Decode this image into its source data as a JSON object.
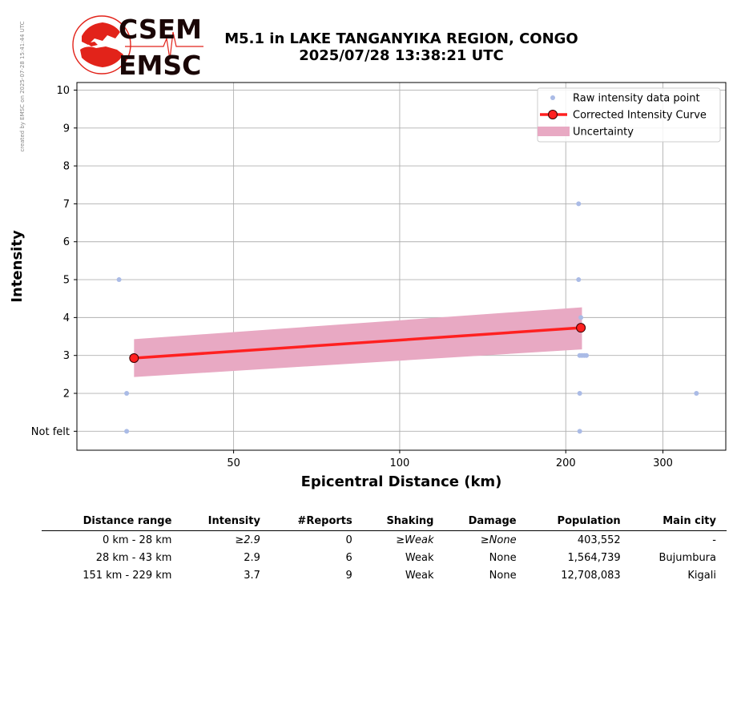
{
  "watermark": "created by EMSC on 2025-07-28 15:41:44 UTC",
  "logo": {
    "top_text": "CSEM",
    "bottom_text": "EMSC",
    "color": "#e2231a"
  },
  "header": {
    "line1": "M5.1 in LAKE TANGANYIKA REGION, CONGO",
    "line2": "2025/07/28 13:38:21 UTC"
  },
  "chart_data": {
    "type": "scatter",
    "x_scale": "log",
    "xlabel": "Epicentral Distance (km)",
    "ylabel": "Intensity",
    "xlim": [
      26,
      390
    ],
    "ylim": [
      0.5,
      10.2
    ],
    "xticks": [
      50,
      100,
      200,
      300
    ],
    "xtick_labels": [
      "50",
      "100",
      "200",
      "300"
    ],
    "yticks": [
      1,
      2,
      3,
      4,
      5,
      6,
      7,
      8,
      9,
      10
    ],
    "ytick_labels": [
      "Not felt",
      "2",
      "3",
      "4",
      "5",
      "6",
      "7",
      "8",
      "9",
      "10"
    ],
    "grid": true,
    "legend": {
      "position": "top-right",
      "entries": [
        "Raw intensity data point",
        "Corrected Intensity Curve",
        "Uncertainty"
      ]
    },
    "series": [
      {
        "name": "Raw intensity data point",
        "kind": "scatter",
        "color": "#aabbe6",
        "points": [
          [
            31,
            5
          ],
          [
            32,
            2
          ],
          [
            32,
            1
          ],
          [
            211,
            7
          ],
          [
            211,
            5
          ],
          [
            213,
            4
          ],
          [
            212,
            3
          ],
          [
            214,
            3
          ],
          [
            216,
            3
          ],
          [
            218,
            3
          ],
          [
            212,
            2
          ],
          [
            212,
            1
          ],
          [
            345,
            2
          ]
        ]
      },
      {
        "name": "Corrected Intensity Curve",
        "kind": "line",
        "color": "#ff2020",
        "points": [
          [
            33,
            2.93
          ],
          [
            213,
            3.73
          ]
        ]
      },
      {
        "name": "Uncertainty",
        "kind": "band",
        "color": "#e8a9c3",
        "x": [
          33,
          214
        ],
        "upper": [
          3.43,
          4.27
        ],
        "lower": [
          2.43,
          3.16
        ]
      }
    ]
  },
  "table": {
    "headers": [
      "Distance range",
      "Intensity",
      "#Reports",
      "Shaking",
      "Damage",
      "Population",
      "Main city"
    ],
    "rows": [
      [
        "0 km -   28 km",
        "≥2.9",
        "0",
        "≥Weak",
        "≥None",
        "403,552",
        "-"
      ],
      [
        "28 km -   43 km",
        "2.9",
        "6",
        "Weak",
        "None",
        "1,564,739",
        "Bujumbura"
      ],
      [
        "151 km -  229 km",
        "3.7",
        "9",
        "Weak",
        "None",
        "12,708,083",
        "Kigali"
      ]
    ]
  }
}
